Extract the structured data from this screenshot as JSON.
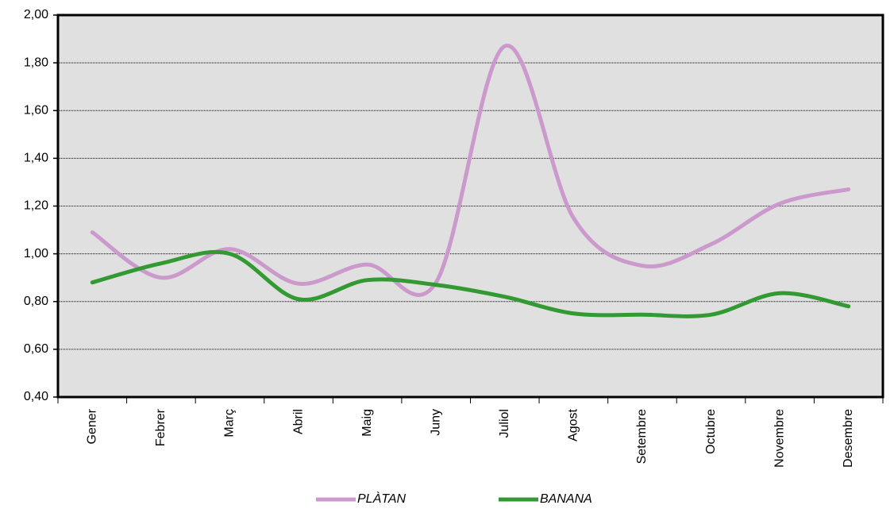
{
  "chart_data": {
    "type": "line",
    "categories": [
      "Gener",
      "Febrer",
      "Març",
      "Abril",
      "Maig",
      "Juny",
      "Juliol",
      "Agost",
      "Setembre",
      "Octubre",
      "Novembre",
      "Desembre"
    ],
    "series": [
      {
        "name": "PLÀTAN",
        "color": "#cc99cc",
        "values": [
          1.09,
          0.9,
          1.02,
          0.875,
          0.955,
          0.88,
          1.87,
          1.15,
          0.95,
          1.04,
          1.21,
          1.27
        ]
      },
      {
        "name": "BANANA",
        "color": "#339933",
        "values": [
          0.88,
          0.96,
          1.0,
          0.81,
          0.89,
          0.87,
          0.82,
          0.75,
          0.745,
          0.745,
          0.835,
          0.78
        ]
      }
    ],
    "ylim": [
      0.4,
      2.0
    ],
    "yticks": [
      {
        "value": 0.4,
        "label": "0,40"
      },
      {
        "value": 0.6,
        "label": "0,60"
      },
      {
        "value": 0.8,
        "label": "0,80"
      },
      {
        "value": 1.0,
        "label": "1,00"
      },
      {
        "value": 1.2,
        "label": "1,20"
      },
      {
        "value": 1.4,
        "label": "1,40"
      },
      {
        "value": 1.6,
        "label": "1,60"
      },
      {
        "value": 1.8,
        "label": "1,80"
      },
      {
        "value": 2.0,
        "label": "2,00"
      }
    ],
    "grid": true,
    "legend": "bottom"
  }
}
